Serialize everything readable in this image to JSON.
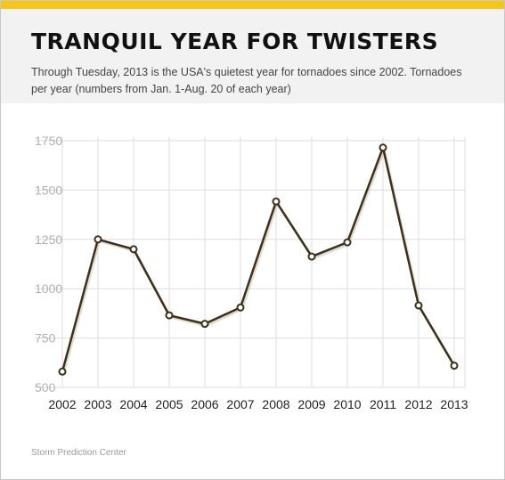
{
  "header": {
    "title": "TRANQUIL YEAR FOR TWISTERS",
    "subtitle": "Through Tuesday, 2013 is the USA's quietest year for tornadoes since 2002. Tornadoes per year (numbers from Jan. 1-Aug. 20 of each year)"
  },
  "source": "Storm Prediction Center",
  "colors": {
    "accent_bar": "#f5c518",
    "line": "#3d2f1a",
    "grid": "#dddddd",
    "y_tick": "#b0b0b0"
  },
  "chart_data": {
    "type": "line",
    "x": [
      "2002",
      "2003",
      "2004",
      "2005",
      "2006",
      "2007",
      "2008",
      "2009",
      "2010",
      "2011",
      "2012",
      "2013"
    ],
    "series": [
      {
        "values": [
          580,
          1250,
          1200,
          865,
          822,
          905,
          1442,
          1163,
          1235,
          1715,
          915,
          610
        ]
      }
    ],
    "yticks": [
      "500",
      "750",
      "1000",
      "1250",
      "1500",
      "1750"
    ],
    "ylim": [
      500,
      1750
    ],
    "grid": true,
    "marker": "open-circle"
  }
}
